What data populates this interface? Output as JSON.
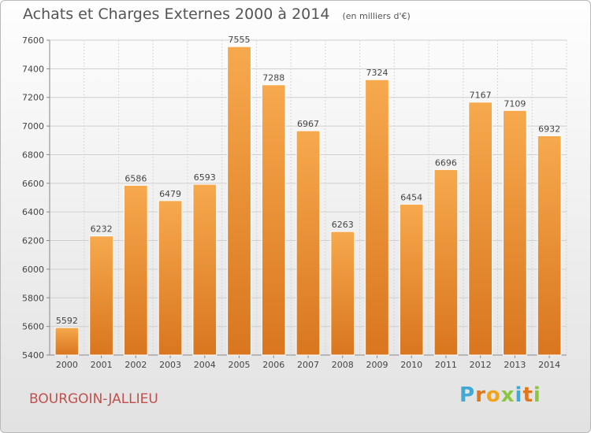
{
  "header": {
    "title": "Achats et Charges Externes 2000 à 2014",
    "unit": "(en milliers d'€)"
  },
  "footer": {
    "city": "BOURGOIN-JALLIEU",
    "logo": {
      "letters": [
        "P",
        "r",
        "o",
        "x",
        "i",
        "t",
        "i"
      ],
      "colors": [
        "#3fa9d6",
        "#e2761b",
        "#f0a51f",
        "#8cc63e",
        "#3fa9d6",
        "#e2761b",
        "#8cc63e"
      ]
    }
  },
  "colors": {
    "bar_top": "#f7a94d",
    "bar_bottom": "#d9761f",
    "city": "#c0504d"
  },
  "chart_data": {
    "type": "bar",
    "title": "Achats et Charges Externes 2000 à 2014",
    "subtitle": "(en milliers d'€)",
    "categories": [
      "2000",
      "2001",
      "2002",
      "2003",
      "2004",
      "2005",
      "2006",
      "2007",
      "2008",
      "2009",
      "2010",
      "2011",
      "2012",
      "2013",
      "2014"
    ],
    "values": [
      5592,
      6232,
      6586,
      6479,
      6593,
      7555,
      7288,
      6967,
      6263,
      7324,
      6454,
      6696,
      7167,
      7109,
      6932
    ],
    "ylim": [
      5400,
      7600
    ],
    "yticks": [
      5400,
      5600,
      5800,
      6000,
      6200,
      6400,
      6600,
      6800,
      7000,
      7200,
      7400,
      7600
    ],
    "grid": true
  }
}
